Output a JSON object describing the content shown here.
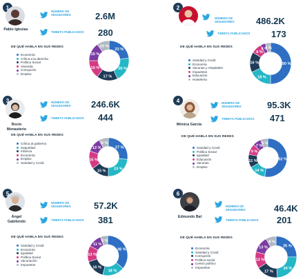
{
  "labels": {
    "followers": "NÚMERO DE SEGUIDORES",
    "tweets": "TWEETS PUBLICADOS",
    "topics_header": "DE QUÉ HABLA EN SUS REDES"
  },
  "people": [
    {
      "number": "1",
      "name": "Pablo Iglesias",
      "followers": "2.6M",
      "tweets": "280",
      "topics": [
        {
          "label": "Economía",
          "color": "#2f6fc3"
        },
        {
          "label": "Crítica a la derecha",
          "color": "#25b7c6"
        },
        {
          "label": "Política Social",
          "color": "#1f3b57"
        },
        {
          "label": "Vivienda",
          "color": "#d63a85"
        },
        {
          "label": "Corrupción",
          "color": "#7b3ca3"
        },
        {
          "label": "Empleo",
          "color": "#b0b8c1"
        }
      ],
      "chart_values": [
        23,
        20,
        17,
        15,
        15,
        10
      ],
      "chart_text": [
        "23 %",
        "20 %",
        "17 %",
        "15 %",
        "15 %",
        "10 %"
      ]
    },
    {
      "number": "2",
      "name": "",
      "followers": "486.2K",
      "tweets": "173",
      "topics": [
        {
          "label": "Sanidad y Covid",
          "color": "#2f6fc3"
        },
        {
          "label": "Economía",
          "color": "#25b7c6"
        },
        {
          "label": "Vacunas y Hospitales",
          "color": "#1f3b57"
        },
        {
          "label": "Impuestos",
          "color": "#d63a85"
        },
        {
          "label": "Educación",
          "color": "#7b3ca3"
        },
        {
          "label": "Hostelería",
          "color": "#b0b8c1"
        }
      ],
      "chart_values": [
        50,
        18,
        16,
        8,
        4,
        4
      ],
      "chart_text": [
        "50 %",
        "18 %",
        "16 %",
        "8 %",
        "4 %",
        "4 %"
      ]
    },
    {
      "number": "3",
      "name": "Rocío Monasterio",
      "followers": "246.6K",
      "tweets": "444",
      "topics": [
        {
          "label": "Crítica al gobierno",
          "color": "#2f6fc3"
        },
        {
          "label": "Seguridad",
          "color": "#25b7c6"
        },
        {
          "label": "Infancia",
          "color": "#1f3b57"
        },
        {
          "label": "Economía",
          "color": "#d63a85"
        },
        {
          "label": "Empleo",
          "color": "#7b3ca3"
        },
        {
          "label": "Sanidad y Covid",
          "color": "#b0b8c1"
        }
      ],
      "chart_values": [
        27,
        23,
        15,
        15,
        12,
        8
      ],
      "chart_text": [
        "27 %",
        "23 %",
        "15 %",
        "15 %",
        "12 %",
        "8 %"
      ]
    },
    {
      "number": "4",
      "name": "Mónica García",
      "followers": "95.3K",
      "tweets": "471",
      "topics": [
        {
          "label": "Sanidad y Covid",
          "color": "#2f6fc3"
        },
        {
          "label": "Política Social",
          "color": "#25b7c6"
        },
        {
          "label": "Igualdad",
          "color": "#1f3b57"
        },
        {
          "label": "Educación",
          "color": "#d63a85"
        },
        {
          "label": "Vacunas",
          "color": "#7b3ca3"
        },
        {
          "label": "Empleo",
          "color": "#b0b8c1"
        }
      ],
      "chart_values": [
        52,
        14,
        11,
        9,
        7,
        6
      ],
      "chart_text": [
        "52 %",
        "14 %",
        "11 %",
        "9 %",
        "7 %",
        "6 %"
      ]
    },
    {
      "number": "5",
      "name": "Ángel Gabilondo",
      "followers": "57.2K",
      "tweets": "381",
      "topics": [
        {
          "label": "Sanidad y Covid",
          "color": "#2f6fc3"
        },
        {
          "label": "Economía",
          "color": "#25b7c6"
        },
        {
          "label": "Igualdad",
          "color": "#1f3b57"
        },
        {
          "label": "Política Social",
          "color": "#d63a85"
        },
        {
          "label": "Vacunación",
          "color": "#7b3ca3"
        },
        {
          "label": "Impuestos",
          "color": "#b0b8c1"
        }
      ],
      "chart_values": [
        36,
        18,
        16,
        13,
        11,
        6
      ],
      "chart_text": [
        "36 %",
        "18 %",
        "16 %",
        "13 %",
        "11 %",
        "6 %"
      ]
    },
    {
      "number": "6",
      "name": "Edmundo Bal",
      "followers": "46.4K",
      "tweets": "201",
      "topics": [
        {
          "label": "Economía",
          "color": "#2f6fc3"
        },
        {
          "label": "Sanidad y Covid",
          "color": "#25b7c6"
        },
        {
          "label": "Corrupción",
          "color": "#1f3b57"
        },
        {
          "label": "Política social",
          "color": "#d63a85"
        },
        {
          "label": "Centro político",
          "color": "#7b3ca3"
        },
        {
          "label": "Impuestos",
          "color": "#b0b8c1"
        }
      ],
      "chart_values": [
        25,
        24,
        17,
        13,
        13,
        8
      ],
      "chart_text": [
        "25 %",
        "24 %",
        "17 %",
        "13 %",
        "13 %",
        "8 %"
      ]
    }
  ]
}
